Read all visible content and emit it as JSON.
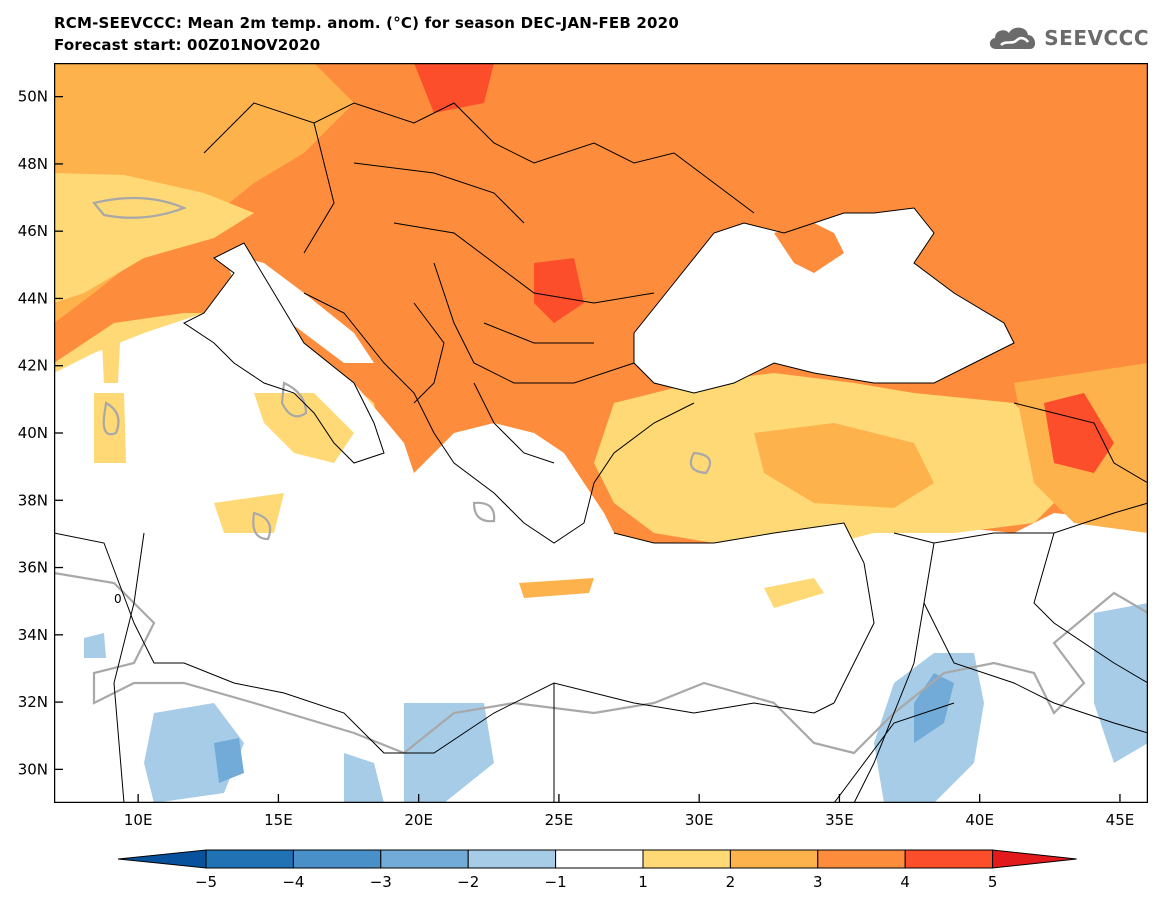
{
  "header": {
    "title_line1": "RCM-SEEVCCC: Mean 2m temp. anom. (°C) for season DEC-JAN-FEB 2020",
    "title_line2": "Forecast start: 00Z01NOV2020",
    "logo_text": "SEEVCCC"
  },
  "map": {
    "lon_range": [
      7,
      46
    ],
    "lat_range": [
      29,
      51
    ],
    "lon_ticks": [
      {
        "value": 10,
        "label": "10E"
      },
      {
        "value": 15,
        "label": "15E"
      },
      {
        "value": 20,
        "label": "20E"
      },
      {
        "value": 25,
        "label": "25E"
      },
      {
        "value": 30,
        "label": "30E"
      },
      {
        "value": 35,
        "label": "35E"
      },
      {
        "value": 40,
        "label": "40E"
      },
      {
        "value": 45,
        "label": "45E"
      }
    ],
    "lat_ticks": [
      {
        "value": 50,
        "label": "50N"
      },
      {
        "value": 48,
        "label": "48N"
      },
      {
        "value": 46,
        "label": "46N"
      },
      {
        "value": 44,
        "label": "44N"
      },
      {
        "value": 42,
        "label": "42N"
      },
      {
        "value": 40,
        "label": "40N"
      },
      {
        "value": 38,
        "label": "38N"
      },
      {
        "value": 36,
        "label": "36N"
      },
      {
        "value": 34,
        "label": "34N"
      },
      {
        "value": 32,
        "label": "32N"
      },
      {
        "value": 30,
        "label": "30N"
      }
    ],
    "contour_label": "0"
  },
  "colorbar": {
    "colors": [
      "#08519c",
      "#2171b5",
      "#4a90c8",
      "#72aad8",
      "#a6cce8",
      "#ffffff",
      "#fed976",
      "#feb24c",
      "#fd8d3c",
      "#fc4e2a",
      "#e31a1c"
    ],
    "labels": [
      "-5",
      "-4",
      "-3",
      "-2",
      "-1",
      "1",
      "2",
      "3",
      "4",
      "5"
    ]
  },
  "colors": {
    "over": "#e31a1c",
    "under": "#08306b",
    "contour": "#a8a8a8",
    "border": "#000000"
  }
}
